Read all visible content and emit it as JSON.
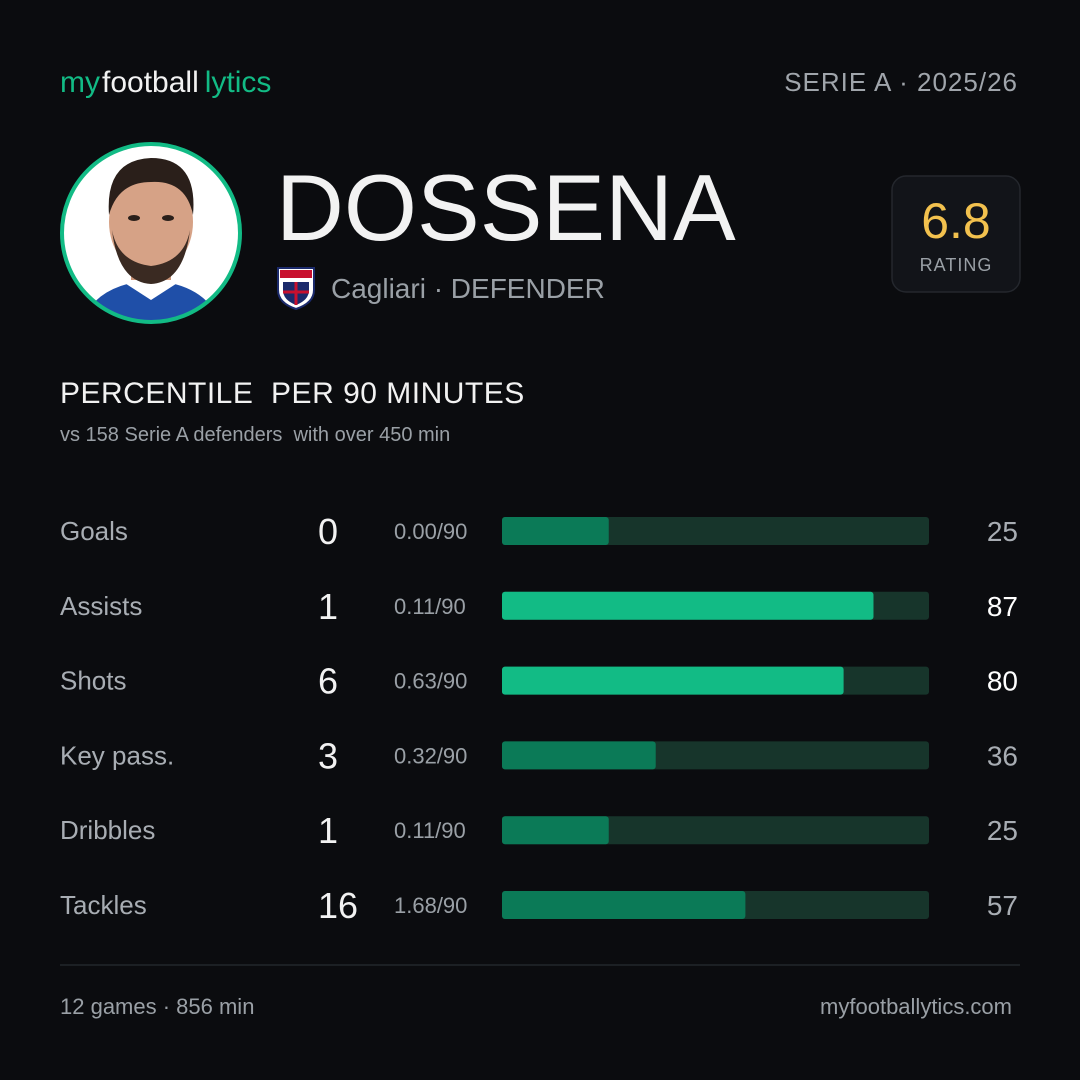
{
  "header": {
    "brand": [
      "my",
      "football",
      "lytics"
    ],
    "league_season": "SERIE A · 2025/26"
  },
  "player": {
    "name": "DOSSENA",
    "club_position": "Cagliari · DEFENDER",
    "rating": 6.8,
    "rating_label": "RATING"
  },
  "section": {
    "title": "PERCENTILE  PER 90 MINUTES",
    "subtitle": "vs 158 Serie A defenders  with over 450 min"
  },
  "stats": {
    "xlim": [
      0,
      100
    ],
    "track_color": "#17352b",
    "rows": [
      {
        "label": "Goals",
        "total": 0,
        "per90": "0.00/90",
        "percentile": 25,
        "color": "#0b7a57",
        "label_color": "#a8adb3"
      },
      {
        "label": "Assists",
        "total": 1,
        "per90": "0.11/90",
        "percentile": 87,
        "color": "#12bb85",
        "label_color": "#ffffff"
      },
      {
        "label": "Shots",
        "total": 6,
        "per90": "0.63/90",
        "percentile": 80,
        "color": "#12bb85",
        "label_color": "#ffffff"
      },
      {
        "label": "Key pass.",
        "total": 3,
        "per90": "0.32/90",
        "percentile": 36,
        "color": "#0b7a57",
        "label_color": "#a8adb3"
      },
      {
        "label": "Dribbles",
        "total": 1,
        "per90": "0.11/90",
        "percentile": 25,
        "color": "#0b7a57",
        "label_color": "#a8adb3"
      },
      {
        "label": "Tackles",
        "total": 16,
        "per90": "1.68/90",
        "percentile": 57,
        "color": "#0b7a57",
        "label_color": "#a8adb3"
      }
    ]
  },
  "footer": {
    "summary": "12 games · 856 min",
    "url": "myfootballytics.com"
  }
}
